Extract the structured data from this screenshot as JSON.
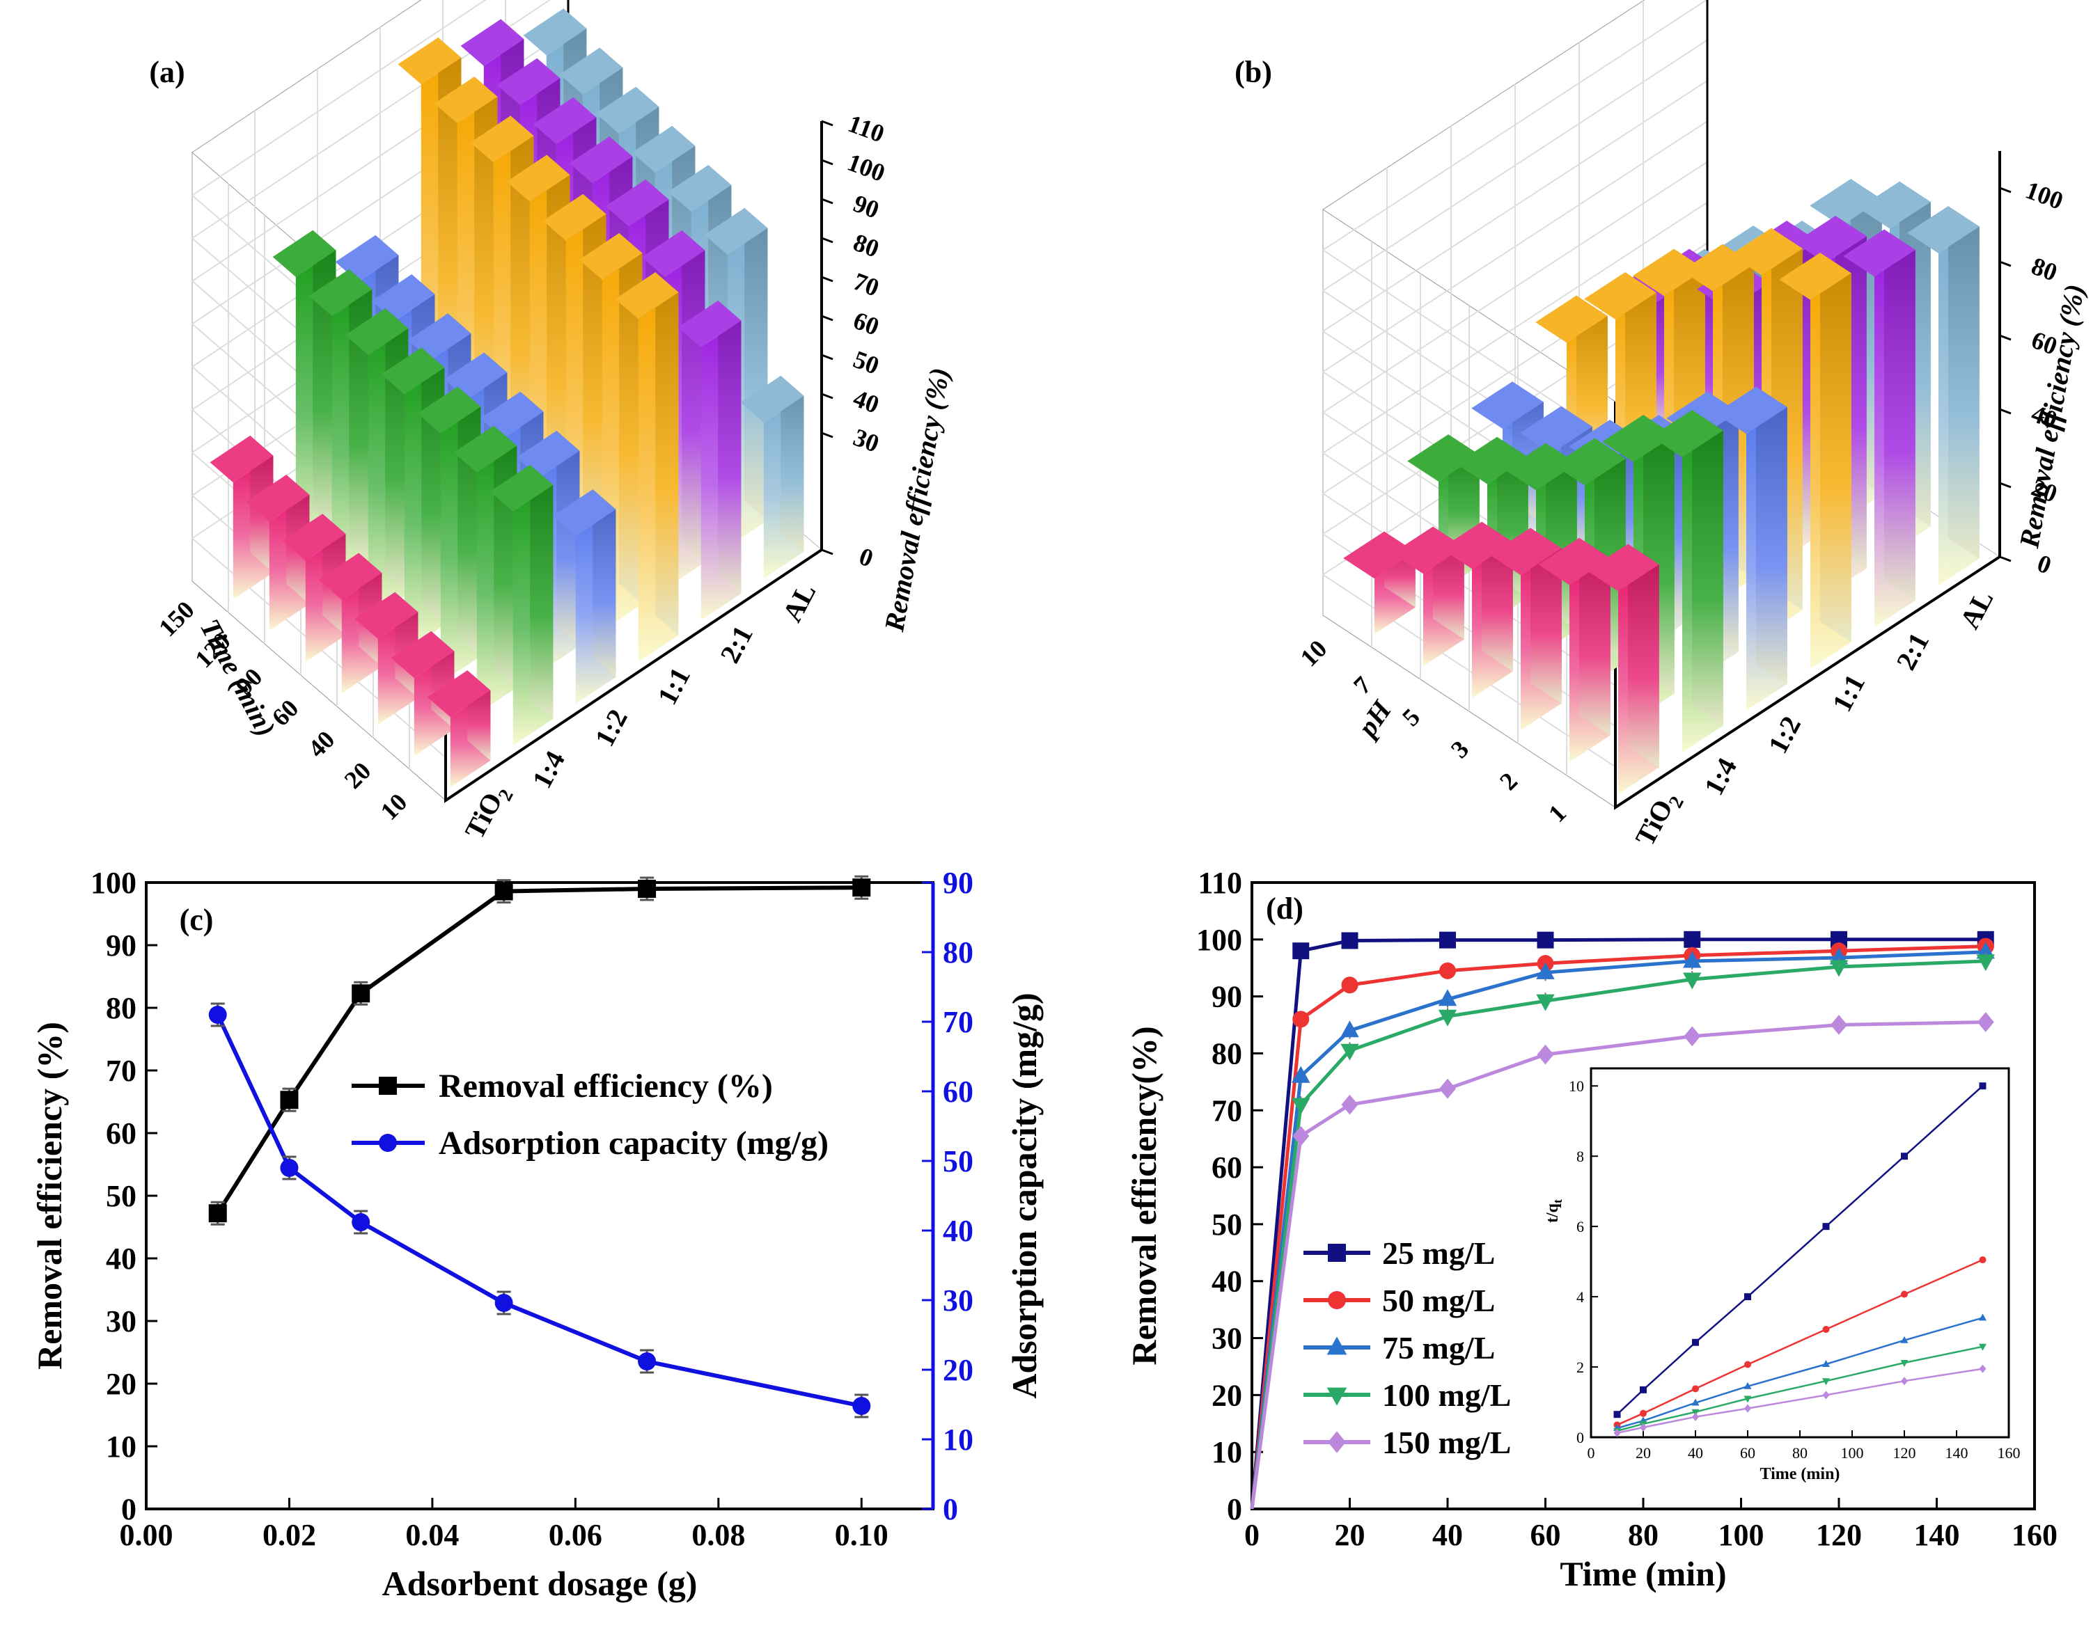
{
  "chart_data": [
    {
      "panel": "(a)",
      "type": "bar3d",
      "zlabel": "Removal efficiency (%)",
      "ylabel": "Time (min)",
      "time_ticks": [
        "10",
        "20",
        "40",
        "60",
        "90",
        "120",
        "150"
      ],
      "z_ticks": [
        "0",
        "30",
        "40",
        "50",
        "60",
        "70",
        "80",
        "90",
        "100",
        "110"
      ],
      "z_range": [
        0,
        110
      ],
      "series": [
        {
          "name": "TiO2",
          "label_main": "TiO",
          "label_sub": "2",
          "color": "#e8196e",
          "values": [
            18,
            20,
            22,
            24,
            26,
            28,
            30
          ]
        },
        {
          "name": "1:4",
          "color": "#1a9e1a",
          "values": [
            60,
            62,
            64,
            66,
            68,
            70,
            72
          ]
        },
        {
          "name": "1:2",
          "color": "#5577ee",
          "values": [
            43,
            50,
            52,
            54,
            56,
            58,
            60
          ]
        },
        {
          "name": "1:1",
          "color": "#f6a700",
          "values": [
            88,
            90,
            92,
            94,
            96,
            98,
            100
          ]
        },
        {
          "name": "2:1",
          "color": "#9b1de0",
          "values": [
            70,
            80,
            85,
            88,
            90,
            92,
            94
          ]
        },
        {
          "name": "AL",
          "color": "#7aaecf",
          "values": [
            40,
            75,
            78,
            80,
            82,
            84,
            86
          ]
        }
      ]
    },
    {
      "panel": "(b)",
      "type": "bar3d",
      "zlabel": "Removal efficiency (%)",
      "ylabel": "pH",
      "ph_ticks": [
        "10",
        "7",
        "5",
        "3",
        "2",
        "1"
      ],
      "z_ticks": [
        "0",
        "20",
        "40",
        "60",
        "80",
        "100"
      ],
      "z_range": [
        0,
        110
      ],
      "series": [
        {
          "name": "TiO2",
          "label_main": "TiO",
          "label_sub": "2",
          "color": "#e8196e",
          "values": [
            15,
            25,
            35,
            42,
            48,
            55
          ]
        },
        {
          "name": "1:4",
          "color": "#1a9e1a",
          "values": [
            30,
            38,
            45,
            55,
            70,
            80
          ]
        },
        {
          "name": "1:2",
          "color": "#5577ee",
          "values": [
            33,
            35,
            40,
            50,
            65,
            75
          ]
        },
        {
          "name": "1:1",
          "color": "#f6a700",
          "values": [
            45,
            60,
            75,
            85,
            98,
            100
          ]
        },
        {
          "name": "2:1",
          "color": "#9b1de0",
          "values": [
            40,
            55,
            60,
            80,
            90,
            95
          ]
        },
        {
          "name": "AL",
          "color": "#7aaecf",
          "values": [
            35,
            50,
            60,
            80,
            88,
            90
          ]
        }
      ]
    },
    {
      "panel": "(c)",
      "type": "line",
      "xlabel": "Adsorbent dosage (g)",
      "ylabel": "Removal efficiency (%)",
      "y2label": "Adsorption capacity (mg/g)",
      "xlim": [
        0,
        0.11
      ],
      "ylim": [
        0,
        100
      ],
      "y2lim": [
        0,
        90
      ],
      "x_ticks": [
        "0.00",
        "0.02",
        "0.04",
        "0.06",
        "0.08",
        "0.10"
      ],
      "y_ticks": [
        "0",
        "10",
        "20",
        "30",
        "40",
        "50",
        "60",
        "70",
        "80",
        "90",
        "100"
      ],
      "y2_ticks": [
        "0",
        "10",
        "20",
        "30",
        "40",
        "50",
        "60",
        "70",
        "80",
        "90"
      ],
      "series": [
        {
          "name": "Removal efficiency (%)",
          "axis": "left",
          "color": "#000000",
          "marker": "square",
          "x": [
            0.01,
            0.02,
            0.03,
            0.05,
            0.07,
            0.1
          ],
          "values": [
            47.2,
            65.3,
            82.3,
            98.6,
            99.0,
            99.2
          ]
        },
        {
          "name": "Adsorption capacity (mg/g)",
          "axis": "right",
          "color": "#1010e0",
          "marker": "circle",
          "x": [
            0.01,
            0.02,
            0.03,
            0.05,
            0.07,
            0.1
          ],
          "values": [
            71.0,
            49.0,
            41.2,
            29.6,
            21.2,
            14.8
          ]
        }
      ]
    },
    {
      "panel": "(d)",
      "type": "line",
      "xlabel": "Time (min)",
      "ylabel": "Removal efficiency(%)",
      "xlim": [
        0,
        160
      ],
      "ylim": [
        0,
        110
      ],
      "x_ticks": [
        "0",
        "20",
        "40",
        "60",
        "80",
        "100",
        "120",
        "140",
        "160"
      ],
      "y_ticks": [
        "0",
        "10",
        "20",
        "30",
        "40",
        "50",
        "60",
        "70",
        "80",
        "90",
        "100",
        "110"
      ],
      "series": [
        {
          "name": "25 mg/L",
          "color": "#101080",
          "marker": "square",
          "x": [
            0,
            10,
            20,
            40,
            60,
            90,
            120,
            150
          ],
          "values": [
            0,
            98,
            99.8,
            99.9,
            99.9,
            100,
            100,
            100
          ]
        },
        {
          "name": "50 mg/L",
          "color": "#ee3333",
          "marker": "circle",
          "x": [
            0,
            10,
            20,
            40,
            60,
            90,
            120,
            150
          ],
          "values": [
            0,
            86,
            92,
            94.5,
            95.8,
            97.2,
            98,
            98.8
          ]
        },
        {
          "name": "75 mg/L",
          "color": "#2a72cc",
          "marker": "triangle-up",
          "x": [
            0,
            10,
            20,
            40,
            60,
            90,
            120,
            150
          ],
          "values": [
            0,
            76,
            84,
            89.5,
            94.2,
            96.2,
            96.8,
            97.8
          ]
        },
        {
          "name": "100 mg/L",
          "color": "#2aaa66",
          "marker": "triangle-down",
          "x": [
            0,
            10,
            20,
            40,
            60,
            90,
            120,
            150
          ],
          "values": [
            0,
            71,
            80.5,
            86.5,
            89.2,
            93,
            95.2,
            96.2
          ]
        },
        {
          "name": "150 mg/L",
          "color": "#bb88dd",
          "marker": "diamond",
          "x": [
            0,
            10,
            20,
            40,
            60,
            90,
            120,
            150
          ],
          "values": [
            0,
            65.5,
            71,
            73.8,
            79.8,
            83,
            85,
            85.5
          ]
        }
      ],
      "inset": {
        "xlabel": "Time (min)",
        "ylabel_main": "t/q",
        "ylabel_sub": "t",
        "xlim": [
          0,
          160
        ],
        "ylim": [
          0,
          10.5
        ],
        "x_ticks": [
          "0",
          "20",
          "40",
          "60",
          "80",
          "100",
          "120",
          "140",
          "160"
        ],
        "y_ticks": [
          "0",
          "2",
          "4",
          "6",
          "8",
          "10"
        ],
        "x": [
          10,
          20,
          40,
          60,
          90,
          120,
          150
        ],
        "series": [
          {
            "name": "25 mg/L",
            "values": [
              0.65,
              1.35,
              2.7,
              4.0,
              6.0,
              8.0,
              10.0
            ]
          },
          {
            "name": "50 mg/L",
            "values": [
              0.35,
              0.68,
              1.38,
              2.07,
              3.07,
              4.07,
              5.05
            ]
          },
          {
            "name": "75 mg/L",
            "values": [
              0.26,
              0.47,
              0.98,
              1.45,
              2.08,
              2.76,
              3.4
            ]
          },
          {
            "name": "100 mg/L",
            "values": [
              0.18,
              0.38,
              0.72,
              1.1,
              1.6,
              2.12,
              2.58
            ]
          },
          {
            "name": "150 mg/L",
            "values": [
              0.12,
              0.28,
              0.58,
              0.82,
              1.2,
              1.6,
              1.95
            ]
          }
        ]
      }
    }
  ]
}
